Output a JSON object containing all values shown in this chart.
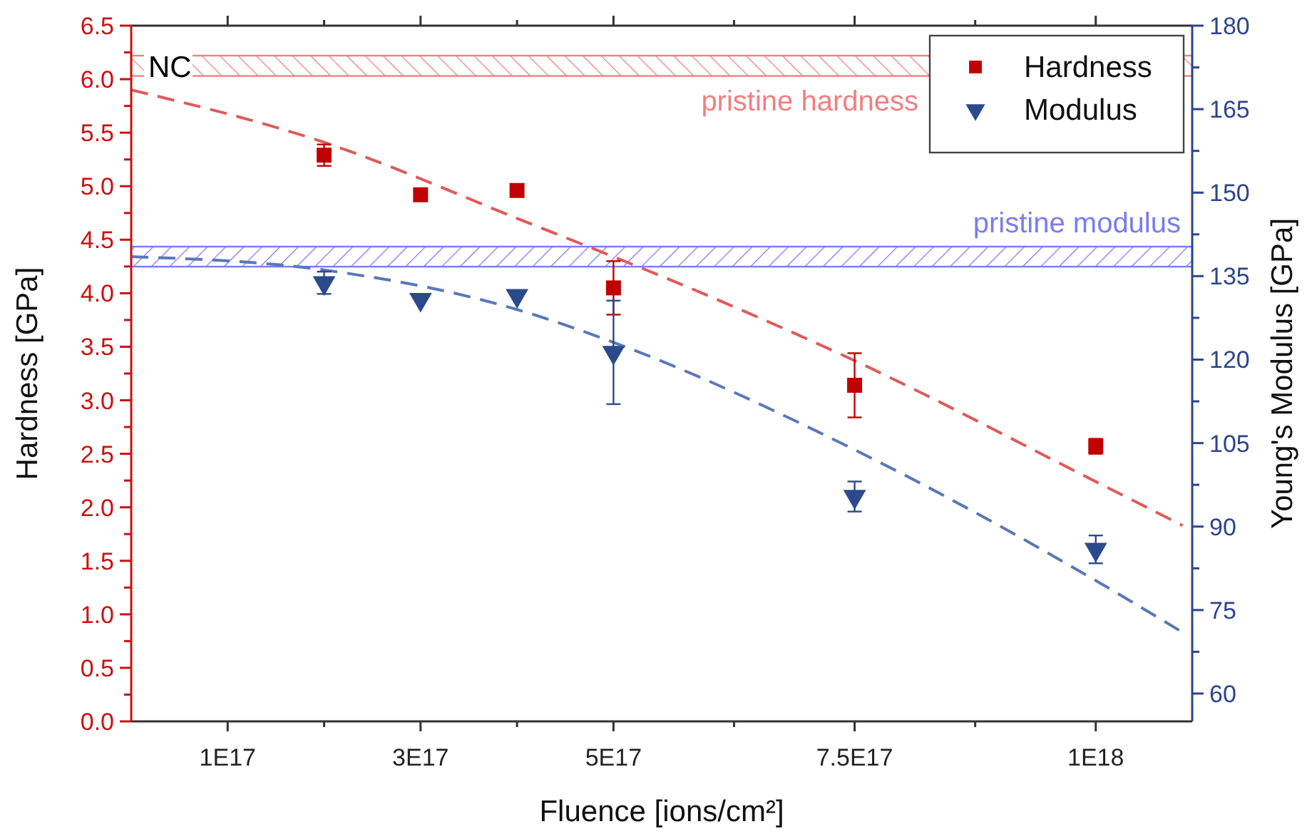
{
  "chart_data": {
    "type": "scatter",
    "xlabel": "Fluence [ions/cm²]",
    "ylabel": "Hardness [GPa]",
    "y2label": "Young's Modulus [GPa]",
    "xlim": [
      0,
      1.1e+18
    ],
    "xticks": [
      {
        "value": 1e+17,
        "label": "1E17"
      },
      {
        "value": 2e+17,
        "label": null
      },
      {
        "value": 3e+17,
        "label": "3E17"
      },
      {
        "value": 4e+17,
        "label": null
      },
      {
        "value": 5e+17,
        "label": "5E17"
      },
      {
        "value": 6.25e+17,
        "label": null
      },
      {
        "value": 7.5e+17,
        "label": "7.5E17"
      },
      {
        "value": 8.75e+17,
        "label": null
      },
      {
        "value": 1e+18,
        "label": "1E18"
      }
    ],
    "ylim": [
      0,
      6.5
    ],
    "yticks": [
      {
        "value": 0,
        "label": "0.0"
      },
      {
        "value": 0.25,
        "label": null
      },
      {
        "value": 0.5,
        "label": "0.5"
      },
      {
        "value": 0.75,
        "label": null
      },
      {
        "value": 1,
        "label": "1.0"
      },
      {
        "value": 1.25,
        "label": null
      },
      {
        "value": 1.5,
        "label": "1.5"
      },
      {
        "value": 1.75,
        "label": null
      },
      {
        "value": 2,
        "label": "2.0"
      },
      {
        "value": 2.25,
        "label": null
      },
      {
        "value": 2.5,
        "label": "2.5"
      },
      {
        "value": 2.75,
        "label": null
      },
      {
        "value": 3,
        "label": "3.0"
      },
      {
        "value": 3.25,
        "label": null
      },
      {
        "value": 3.5,
        "label": "3.5"
      },
      {
        "value": 3.75,
        "label": null
      },
      {
        "value": 4,
        "label": "4.0"
      },
      {
        "value": 4.25,
        "label": null
      },
      {
        "value": 4.5,
        "label": "4.5"
      },
      {
        "value": 4.75,
        "label": null
      },
      {
        "value": 5,
        "label": "5.0"
      },
      {
        "value": 5.25,
        "label": null
      },
      {
        "value": 5.5,
        "label": "5.5"
      },
      {
        "value": 5.75,
        "label": null
      },
      {
        "value": 6,
        "label": "6.0"
      },
      {
        "value": 6.25,
        "label": null
      },
      {
        "value": 6.5,
        "label": "6.5"
      }
    ],
    "y2lim": [
      55,
      180
    ],
    "y2ticks": [
      60,
      {
        "value": 67.5,
        "label": null
      },
      75,
      {
        "value": 82.5,
        "label": null
      },
      90,
      {
        "value": 97.5,
        "label": null
      },
      105,
      {
        "value": 112.5,
        "label": null
      },
      120,
      {
        "value": 127.5,
        "label": null
      },
      135,
      {
        "value": 142.5,
        "label": null
      },
      150,
      {
        "value": 157.5,
        "label": null
      },
      165,
      {
        "value": 172.5,
        "label": null
      },
      180
    ],
    "grid": false,
    "legend": "top right",
    "series": [
      {
        "name": "Hardness",
        "marker": "square",
        "color": "#c00000",
        "x": [
          2e+17,
          3e+17,
          4e+17,
          5e+17,
          7.5e+17,
          1e+18
        ],
        "values": [
          5.29,
          4.92,
          4.96,
          4.05,
          3.14,
          2.57
        ],
        "errors": [
          0.1,
          0.05,
          null,
          0.25,
          0.3,
          0.07
        ]
      },
      {
        "name": "Modulus",
        "marker": "triangle",
        "axis": "y2",
        "color": "#2b4a8c",
        "x": [
          2e+17,
          3e+17,
          4e+17,
          5e+17,
          7.5e+17,
          1e+18
        ],
        "values": [
          133.8,
          130.8,
          131.5,
          121.3,
          95.4,
          85.9
        ],
        "errors": [
          2,
          null,
          null,
          9.3,
          2.7,
          2.5
        ]
      },
      {
        "type": "line",
        "line_style": "dashed",
        "marker": "none",
        "color": "#e05a5a",
        "x": [
          0,
          2e+17,
          4e+17,
          6e+17,
          7.5e+17,
          1e+18,
          1.09e+18
        ],
        "values": [
          5.9,
          5.41,
          4.7,
          3.97,
          3.37,
          2.24,
          1.83
        ]
      },
      {
        "type": "line",
        "line_style": "dashed",
        "marker": "none",
        "axis": "y2",
        "color": "#5a78b8",
        "x": [
          0,
          2e+17,
          4e+17,
          5e+17,
          7.5e+17,
          1e+18,
          1.09e+18
        ],
        "values": [
          138.5,
          136.1,
          129,
          123.1,
          103.8,
          80.3,
          71
        ]
      }
    ],
    "bands": [
      {
        "axis": "y",
        "from": 6.03,
        "to": 6.22,
        "label": "pristine hardness",
        "color": "#f08080"
      },
      {
        "axis": "y2",
        "from": 136.7,
        "to": 140.3,
        "label": "pristine modulus",
        "color": "#7b7bf0"
      }
    ],
    "annotations": [
      "NC"
    ]
  }
}
